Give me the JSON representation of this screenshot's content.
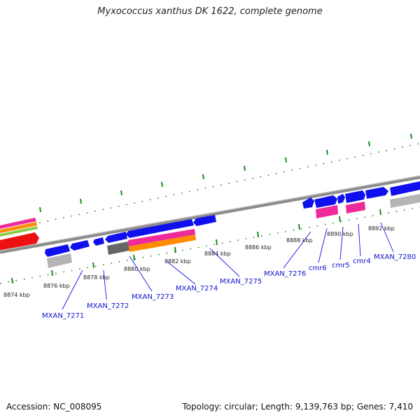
{
  "title": "Myxococcus xanthus DK 1622, complete genome",
  "footer": {
    "accession": "Accession: NC_008095",
    "summary": "Topology: circular; Length: 9,139,763 bp; Genes: 7,410"
  },
  "scale_labels": [
    "8874 kbp",
    "8876 kbp",
    "8878 kbp",
    "8880 kbp",
    "8882 kbp",
    "8884 kbp",
    "8886 kbp",
    "8888 kbp",
    "8890 kbp",
    "8892 kbp"
  ],
  "gene_labels": [
    "MXAN_7271",
    "MXAN_7272",
    "MXAN_7273",
    "MXAN_7274",
    "MXAN_7275",
    "MXAN_7276",
    "cmr6",
    "cmr5",
    "cmr4",
    "MXAN_7280"
  ],
  "colors": {
    "forward_cds": "#1010ee",
    "reverse_cds": "#1010ee",
    "backbone": "#8c8c8c",
    "tick": "#1e8a1e",
    "label_line": "#1010ee",
    "crispr_pink": "#ee2a9a",
    "red_feature": "#ee1111",
    "grey_feature": "#b5b5b5",
    "dark_grey_feature": "#666666",
    "orange_feature": "#ff8c00",
    "green_feature": "#88cc44"
  }
}
